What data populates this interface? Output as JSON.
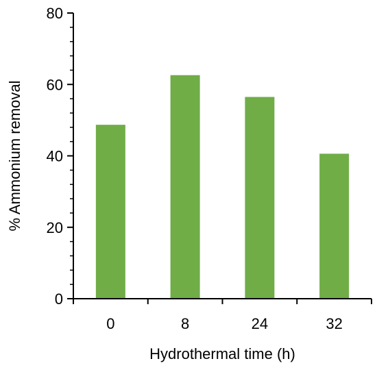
{
  "chart_data": {
    "type": "bar",
    "categories": [
      "0",
      "8",
      "24",
      "32"
    ],
    "values": [
      48.7,
      62.6,
      56.5,
      40.6
    ],
    "xlabel": "Hydrothermal time (h)",
    "ylabel": "% Ammonium removal",
    "ylim": [
      0,
      80
    ],
    "yticks": [
      "0",
      "20",
      "40",
      "60",
      "80"
    ],
    "grid": false,
    "legend": "none",
    "bar_color": "#70ad47",
    "axis_color": "#000000"
  }
}
